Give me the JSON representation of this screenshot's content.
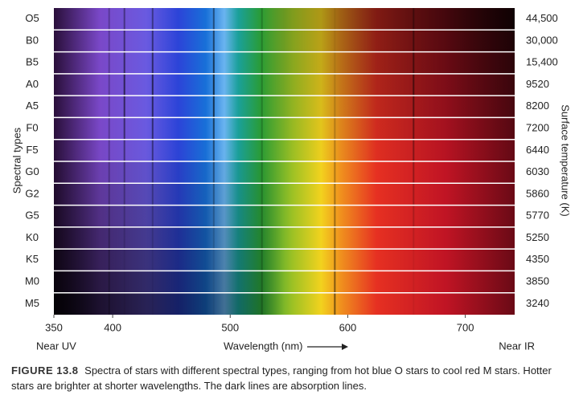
{
  "chart_data": {
    "type": "spectra",
    "categories": [
      "O5",
      "B0",
      "B5",
      "A0",
      "A5",
      "F0",
      "F5",
      "G0",
      "G2",
      "G5",
      "K0",
      "K5",
      "M0",
      "M5"
    ],
    "temperatures": [
      "44,500",
      "30,000",
      "15,400",
      "9520",
      "8200",
      "7200",
      "6440",
      "6030",
      "5860",
      "5770",
      "5250",
      "4350",
      "3850",
      "3240"
    ],
    "ylabel": "Spectral types",
    "y2label": "Surface temperature (K)",
    "xlabel": "Wavelength (nm)",
    "xlim": [
      350,
      742
    ],
    "xticks": [
      350,
      400,
      500,
      600,
      700
    ],
    "left_note": "Near UV",
    "right_note": "Near IR"
  },
  "caption": {
    "label": "FIGURE 13.8",
    "text": "Spectra of stars with different spectral types, ranging from hot blue O stars to cool red M stars. Hotter stars are brighter at shorter wavelengths. The dark lines are absorption lines."
  }
}
